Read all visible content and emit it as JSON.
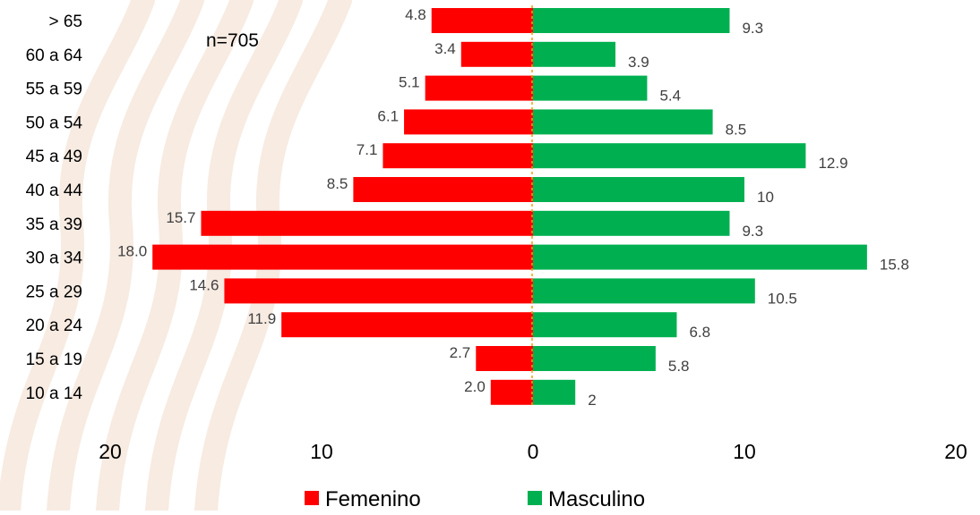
{
  "chart_data": {
    "type": "bar",
    "orientation": "horizontal-population-pyramid",
    "annotation": "n=705",
    "categories": [
      "> 65",
      "60 a 64",
      "55 a 59",
      "50 a 54",
      "45 a 49",
      "40 a 44",
      "35 a 39",
      "30 a 34",
      "25 a 29",
      "20 a 24",
      "15 a 19",
      "10 a 14"
    ],
    "series": [
      {
        "name": "Femenino",
        "color": "#ff0000",
        "values": [
          4.8,
          3.4,
          5.1,
          6.1,
          7.1,
          8.5,
          15.7,
          18.0,
          14.6,
          11.9,
          2.7,
          2.0
        ],
        "labels": [
          "4.8",
          "3.4",
          "5.1",
          "6.1",
          "7.1",
          "8.5",
          "15.7",
          "18.0",
          "14.6",
          "11.9",
          "2.7",
          "2.0"
        ]
      },
      {
        "name": "Masculino",
        "color": "#00b050",
        "values": [
          9.3,
          3.9,
          5.4,
          8.5,
          12.9,
          10,
          9.3,
          15.8,
          10.5,
          6.8,
          5.8,
          2
        ],
        "labels": [
          "9.3",
          "3.9",
          "5.4",
          "8.5",
          "12.9",
          "10",
          "9.3",
          "15.8",
          "10.5",
          "6.8",
          "5.8",
          "2"
        ]
      }
    ],
    "xticks": [
      "20",
      "10",
      "0",
      "10",
      "20"
    ],
    "xlim": [
      -20,
      20
    ],
    "xlabel": "",
    "ylabel": "",
    "grid": false,
    "legend_position": "bottom"
  }
}
